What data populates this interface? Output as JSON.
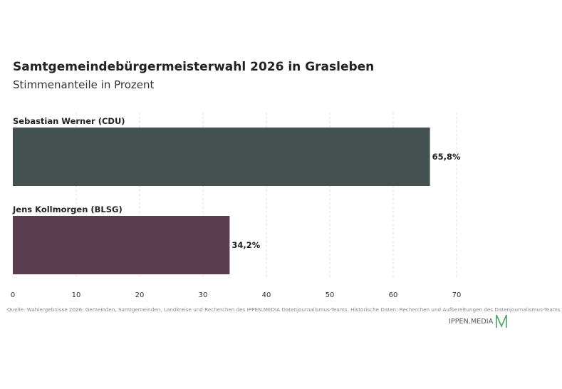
{
  "chart_data": {
    "type": "bar",
    "orientation": "horizontal",
    "title": "Samtgemeindebürgermeisterwahl 2026 in Grasleben",
    "subtitle": "Stimmenanteile in Prozent",
    "categories": [
      "Sebastian Werner (CDU)",
      "Jens Kollmorgen (BLSG)"
    ],
    "values": [
      65.8,
      34.2
    ],
    "value_labels": [
      "65,8%",
      "34,2%"
    ],
    "colors": [
      "#455150",
      "#5b3d4f"
    ],
    "xlim": [
      0,
      70
    ],
    "xticks": [
      0,
      10,
      20,
      30,
      40,
      50,
      60,
      70
    ],
    "grid": "vertical dashed",
    "xlabel": "",
    "ylabel": ""
  },
  "footer": {
    "source": "Quelle: Wahlergebnisse 2026: Gemeinden, Samtgemeinden, Landkreise und Recherchen des IPPEN.MEDIA Datenjournalismus-Teams. Historische Daten: Recherchen und Aufbereitungen des Datenjournalismus-Teams.",
    "logo_text": "IPPEN.MEDIA",
    "logo_color": "#4aa564"
  }
}
